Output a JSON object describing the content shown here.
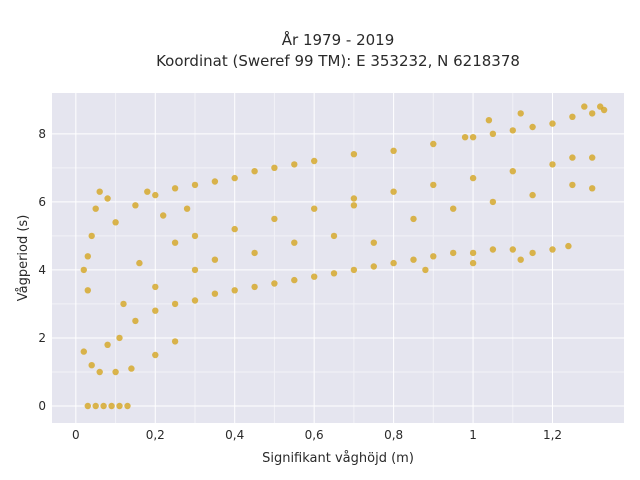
{
  "chart_data": {
    "type": "scatter",
    "title": "År 1979 - 2019",
    "subtitle": "Koordinat (Sweref 99 TM): E 353232, N 6218378",
    "xlabel": "Signifikant våghöjd (m)",
    "ylabel": "Vågperiod (s)",
    "xlim": [
      -0.06,
      1.38
    ],
    "ylim": [
      -0.5,
      9.2
    ],
    "xticks": [
      0,
      0.2,
      0.4,
      0.6,
      0.8,
      1,
      1.2
    ],
    "xtick_labels": [
      "0",
      "0,2",
      "0,4",
      "0,6",
      "0,8",
      "1",
      "1,2"
    ],
    "yticks": [
      0,
      2,
      4,
      6,
      8
    ],
    "ytick_labels": [
      "0",
      "2",
      "4",
      "6",
      "8"
    ],
    "grid": true,
    "marker_color": "#d4a520",
    "background_color": "#e5e5ef",
    "series": [
      {
        "description_free": true,
        "points": [
          [
            0.02,
            1.6
          ],
          [
            0.03,
            0.0
          ],
          [
            0.05,
            0.0
          ],
          [
            0.07,
            0.0
          ],
          [
            0.09,
            0.0
          ],
          [
            0.11,
            0.0
          ],
          [
            0.13,
            0.0
          ],
          [
            0.03,
            3.4
          ],
          [
            0.03,
            4.4
          ],
          [
            0.04,
            5.0
          ],
          [
            0.05,
            5.8
          ],
          [
            0.06,
            6.3
          ],
          [
            0.08,
            6.1
          ],
          [
            0.02,
            4.0
          ],
          [
            0.04,
            1.2
          ],
          [
            0.06,
            1.0
          ],
          [
            0.1,
            1.0
          ],
          [
            0.14,
            1.1
          ],
          [
            0.2,
            1.5
          ],
          [
            0.25,
            1.9
          ],
          [
            0.1,
            5.4
          ],
          [
            0.15,
            5.9
          ],
          [
            0.2,
            6.2
          ],
          [
            0.25,
            6.4
          ],
          [
            0.3,
            6.5
          ],
          [
            0.35,
            6.6
          ],
          [
            0.4,
            6.7
          ],
          [
            0.45,
            6.9
          ],
          [
            0.5,
            7.0
          ],
          [
            0.55,
            7.1
          ],
          [
            0.6,
            7.2
          ],
          [
            0.7,
            7.4
          ],
          [
            0.8,
            7.5
          ],
          [
            0.9,
            7.7
          ],
          [
            1.0,
            7.9
          ],
          [
            1.05,
            8.0
          ],
          [
            1.1,
            8.1
          ],
          [
            1.15,
            8.2
          ],
          [
            1.2,
            8.3
          ],
          [
            1.25,
            8.5
          ],
          [
            1.28,
            8.8
          ],
          [
            1.3,
            8.6
          ],
          [
            1.32,
            8.8
          ],
          [
            1.33,
            8.7
          ],
          [
            1.12,
            8.6
          ],
          [
            1.04,
            8.4
          ],
          [
            0.98,
            7.9
          ],
          [
            0.15,
            2.5
          ],
          [
            0.2,
            2.8
          ],
          [
            0.25,
            3.0
          ],
          [
            0.3,
            3.1
          ],
          [
            0.35,
            3.3
          ],
          [
            0.4,
            3.4
          ],
          [
            0.45,
            3.5
          ],
          [
            0.5,
            3.6
          ],
          [
            0.55,
            3.7
          ],
          [
            0.6,
            3.8
          ],
          [
            0.65,
            3.9
          ],
          [
            0.7,
            4.0
          ],
          [
            0.75,
            4.1
          ],
          [
            0.8,
            4.2
          ],
          [
            0.85,
            4.3
          ],
          [
            0.9,
            4.4
          ],
          [
            0.95,
            4.5
          ],
          [
            1.0,
            4.5
          ],
          [
            1.05,
            4.6
          ],
          [
            1.1,
            4.6
          ],
          [
            1.15,
            4.5
          ],
          [
            1.2,
            4.6
          ],
          [
            1.24,
            4.7
          ],
          [
            1.12,
            4.3
          ],
          [
            1.0,
            4.2
          ],
          [
            0.88,
            4.0
          ],
          [
            0.3,
            5.0
          ],
          [
            0.4,
            5.2
          ],
          [
            0.5,
            5.5
          ],
          [
            0.6,
            5.8
          ],
          [
            0.7,
            6.1
          ],
          [
            0.8,
            6.3
          ],
          [
            0.9,
            6.5
          ],
          [
            1.0,
            6.7
          ],
          [
            1.1,
            6.9
          ],
          [
            1.2,
            7.1
          ],
          [
            1.25,
            7.3
          ],
          [
            1.3,
            7.3
          ],
          [
            0.85,
            5.5
          ],
          [
            0.95,
            5.8
          ],
          [
            1.05,
            6.0
          ],
          [
            1.15,
            6.2
          ],
          [
            1.25,
            6.5
          ],
          [
            1.3,
            6.4
          ],
          [
            0.7,
            5.9
          ],
          [
            0.75,
            4.8
          ],
          [
            0.35,
            4.3
          ],
          [
            0.45,
            4.5
          ],
          [
            0.55,
            4.8
          ],
          [
            0.65,
            5.0
          ],
          [
            0.2,
            3.5
          ],
          [
            0.3,
            4.0
          ],
          [
            0.25,
            4.8
          ],
          [
            0.18,
            6.3
          ],
          [
            0.22,
            5.6
          ],
          [
            0.28,
            5.8
          ],
          [
            0.12,
            3.0
          ],
          [
            0.16,
            4.2
          ],
          [
            0.11,
            2.0
          ],
          [
            0.08,
            1.8
          ]
        ]
      }
    ]
  }
}
